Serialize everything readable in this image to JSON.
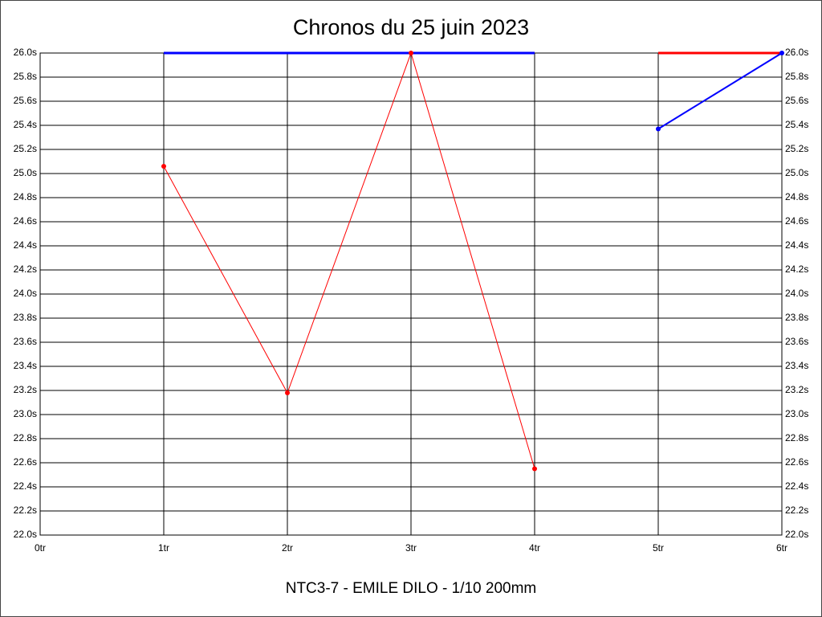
{
  "chart_data": {
    "type": "line",
    "title": "Chronos du 25 juin 2023",
    "subtitle": "NTC3-7 - EMILE DILO - 1/10 200mm",
    "categories": [
      "0tr",
      "1tr",
      "2tr",
      "3tr",
      "4tr",
      "5tr",
      "6tr"
    ],
    "series": [
      {
        "color": "#0000ff",
        "width": 3,
        "markers": false,
        "values": [
          null,
          26.0,
          26.0,
          26.0,
          26.0,
          null,
          null
        ]
      },
      {
        "color": "#ff0000",
        "width": 3,
        "markers": false,
        "values": [
          null,
          null,
          null,
          null,
          null,
          26.0,
          26.0
        ]
      },
      {
        "color": "#ff0000",
        "width": 1,
        "markers": true,
        "values": [
          null,
          25.06,
          23.18,
          26.0,
          22.55,
          null,
          null
        ]
      },
      {
        "color": "#0000ff",
        "width": 2,
        "markers": true,
        "values": [
          null,
          null,
          null,
          null,
          null,
          25.37,
          26.0
        ]
      }
    ],
    "ylim": [
      22,
      26
    ],
    "yticks": [
      {
        "value": 22,
        "label": "22.0s"
      },
      {
        "value": 22.2,
        "label": "22.2s"
      },
      {
        "value": 22.4,
        "label": "22.4s"
      },
      {
        "value": 22.6,
        "label": "22.6s"
      },
      {
        "value": 22.8,
        "label": "22.8s"
      },
      {
        "value": 23,
        "label": "23.0s"
      },
      {
        "value": 23.2,
        "label": "23.2s"
      },
      {
        "value": 23.4,
        "label": "23.4s"
      },
      {
        "value": 23.6,
        "label": "23.6s"
      },
      {
        "value": 23.8,
        "label": "23.8s"
      },
      {
        "value": 24,
        "label": "24.0s"
      },
      {
        "value": 24.2,
        "label": "24.2s"
      },
      {
        "value": 24.4,
        "label": "24.4s"
      },
      {
        "value": 24.6,
        "label": "24.6s"
      },
      {
        "value": 24.8,
        "label": "24.8s"
      },
      {
        "value": 25,
        "label": "25.0s"
      },
      {
        "value": 25.2,
        "label": "25.2s"
      },
      {
        "value": 25.4,
        "label": "25.4s"
      },
      {
        "value": 25.6,
        "label": "25.6s"
      },
      {
        "value": 25.8,
        "label": "25.8s"
      },
      {
        "value": 26,
        "label": "26.0s"
      }
    ],
    "grid": true,
    "right_axis": true
  }
}
